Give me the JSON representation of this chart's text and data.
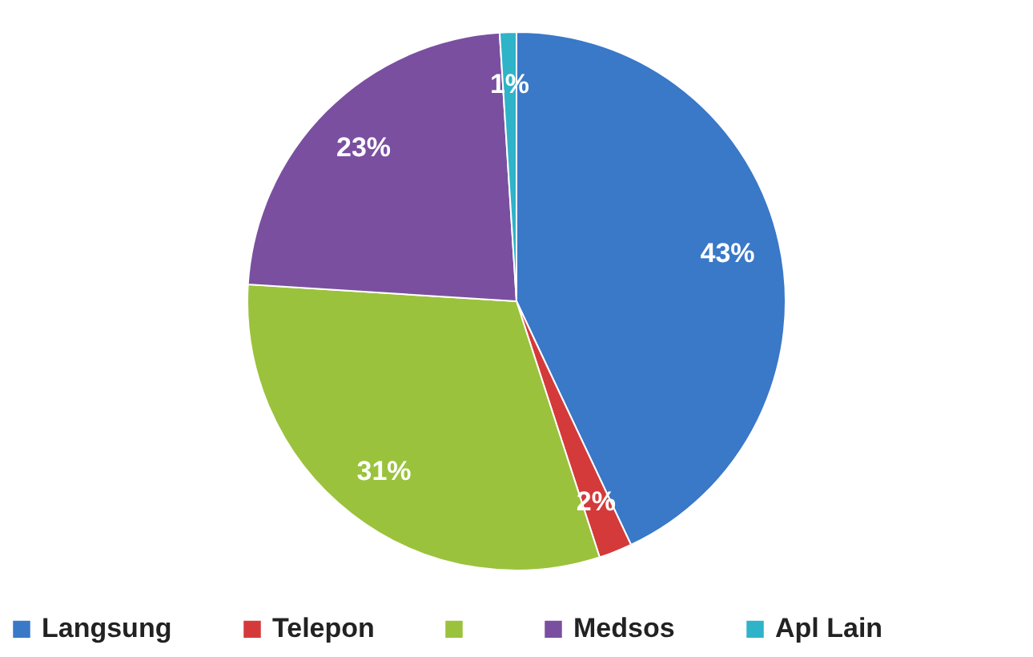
{
  "chart_data": {
    "type": "pie",
    "categories": [
      "Langsung",
      "Telepon",
      null,
      "Medsos",
      "Apl Lain"
    ],
    "values": [
      43,
      2,
      31,
      23,
      1
    ],
    "colors": [
      "#3a78c8",
      "#d43a3a",
      "#9bc23c",
      "#7a4fa0",
      "#2fb3c8"
    ],
    "value_labels": [
      "43%",
      "2%",
      "31%",
      "23%",
      "1%"
    ],
    "legend": "bottom"
  }
}
